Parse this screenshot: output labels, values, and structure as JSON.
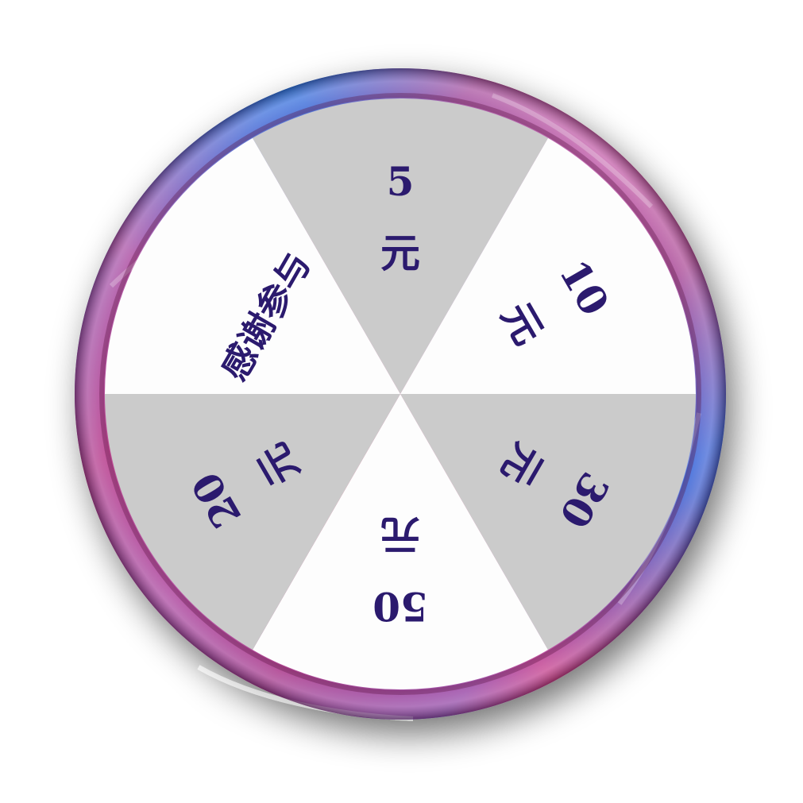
{
  "wheel": {
    "colors": {
      "shaded_segment": "#cbcbcb",
      "light_segment": "#fdfdfd",
      "label": "#2b1a6e",
      "rim_pink": "#e2336e",
      "rim_blue": "#3a5fd6",
      "rim_deep": "#7a1a5a"
    },
    "segments": [
      {
        "label": "5元",
        "shade": "shaded"
      },
      {
        "label": "10元",
        "shade": "light"
      },
      {
        "label": "30元",
        "shade": "shaded"
      },
      {
        "label": "50元",
        "shade": "light"
      },
      {
        "label": "20元",
        "shade": "shaded"
      },
      {
        "label": "感谢参与",
        "shade": "light"
      }
    ]
  }
}
